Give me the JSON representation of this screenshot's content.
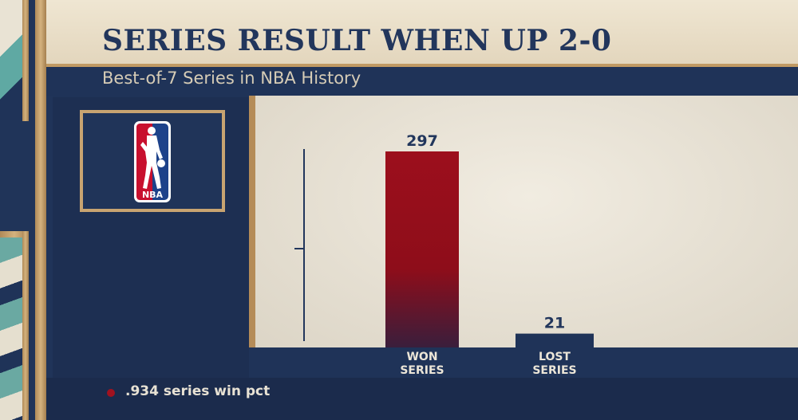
{
  "header": {
    "title": "SERIES RESULT WHEN UP 2-0",
    "subtitle": "Best-of-7 Series in NBA History"
  },
  "logo": {
    "icon": "nba-logo-icon",
    "text": "NBA"
  },
  "footer": {
    "note": ".934 series win pct"
  },
  "colors": {
    "bar_won": "#9c0f1c",
    "bar_lost": "#1f3358",
    "accent_dot": "#a1121f"
  },
  "chart_data": {
    "type": "bar",
    "categories": [
      "WON SERIES",
      "LOST SERIES"
    ],
    "values": [
      297,
      21
    ],
    "ylim": [
      0,
      320
    ],
    "grid": false,
    "legend": "none"
  }
}
